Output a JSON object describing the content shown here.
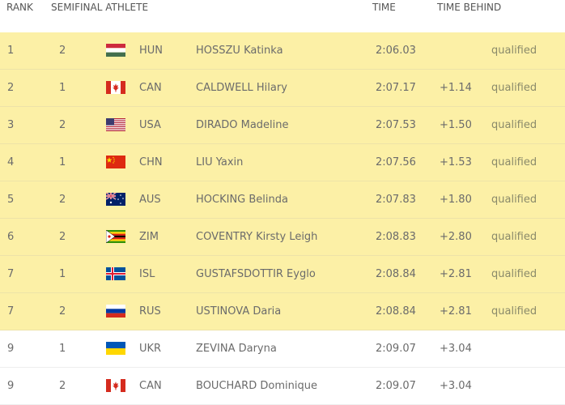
{
  "columns": {
    "rank": "RANK",
    "semifinal_athlete": "SEMIFINAL ATHLETE",
    "time": "TIME",
    "time_behind": "TIME BEHIND"
  },
  "rows": [
    {
      "rank": "1",
      "semi": "2",
      "flag": "hungary-flag-icon",
      "code": "HUN",
      "name": "HOSSZU Katinka",
      "time": "2:06.03",
      "behind": "",
      "status": "qualified",
      "qualified": true
    },
    {
      "rank": "2",
      "semi": "1",
      "flag": "canada-flag-icon",
      "code": "CAN",
      "name": "CALDWELL Hilary",
      "time": "2:07.17",
      "behind": "+1.14",
      "status": "qualified",
      "qualified": true
    },
    {
      "rank": "3",
      "semi": "2",
      "flag": "usa-flag-icon",
      "code": "USA",
      "name": "DIRADO Madeline",
      "time": "2:07.53",
      "behind": "+1.50",
      "status": "qualified",
      "qualified": true
    },
    {
      "rank": "4",
      "semi": "1",
      "flag": "china-flag-icon",
      "code": "CHN",
      "name": "LIU Yaxin",
      "time": "2:07.56",
      "behind": "+1.53",
      "status": "qualified",
      "qualified": true
    },
    {
      "rank": "5",
      "semi": "2",
      "flag": "australia-flag-icon",
      "code": "AUS",
      "name": "HOCKING Belinda",
      "time": "2:07.83",
      "behind": "+1.80",
      "status": "qualified",
      "qualified": true
    },
    {
      "rank": "6",
      "semi": "2",
      "flag": "zimbabwe-flag-icon",
      "code": "ZIM",
      "name": "COVENTRY Kirsty Leigh",
      "time": "2:08.83",
      "behind": "+2.80",
      "status": "qualified",
      "qualified": true
    },
    {
      "rank": "7",
      "semi": "1",
      "flag": "iceland-flag-icon",
      "code": "ISL",
      "name": "GUSTAFSDOTTIR Eyglo",
      "time": "2:08.84",
      "behind": "+2.81",
      "status": "qualified",
      "qualified": true
    },
    {
      "rank": "7",
      "semi": "2",
      "flag": "russia-flag-icon",
      "code": "RUS",
      "name": "USTINOVA Daria",
      "time": "2:08.84",
      "behind": "+2.81",
      "status": "qualified",
      "qualified": true
    },
    {
      "rank": "9",
      "semi": "1",
      "flag": "ukraine-flag-icon",
      "code": "UKR",
      "name": "ZEVINA Daryna",
      "time": "2:09.07",
      "behind": "+3.04",
      "status": "",
      "qualified": false
    },
    {
      "rank": "9",
      "semi": "2",
      "flag": "canada-flag-icon",
      "code": "CAN",
      "name": "BOUCHARD Dominique",
      "time": "2:09.07",
      "behind": "+3.04",
      "status": "",
      "qualified": false
    }
  ],
  "colors": {
    "qualified_row": "#fcf0a6",
    "normal_row": "#ffffff",
    "text": "#6b6b6b"
  }
}
